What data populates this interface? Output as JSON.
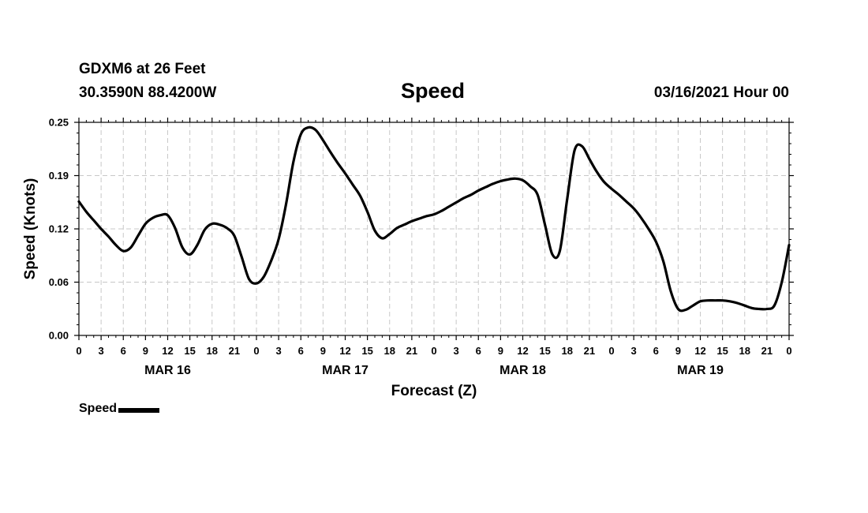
{
  "header": {
    "station": "GDXM6 at 26 Feet",
    "coords": "30.3590N 88.4200W",
    "title": "Speed",
    "datetime": "03/16/2021 Hour 00"
  },
  "legend": {
    "label": "Speed"
  },
  "colors": {
    "line": "#000000",
    "grid": "#c8c8c8",
    "axis": "#000000"
  },
  "chart_data": {
    "type": "line",
    "title": "Speed",
    "xlabel": "Forecast (Z)",
    "ylabel": "Speed (Knots)",
    "xlim": [
      0,
      96
    ],
    "ylim": [
      0,
      0.25
    ],
    "grid": true,
    "y_ticks": [
      {
        "value": 0,
        "label": "0.00"
      },
      {
        "value": 0.0625,
        "label": "0.06"
      },
      {
        "value": 0.125,
        "label": "0.12"
      },
      {
        "value": 0.1875,
        "label": "0.19"
      },
      {
        "value": 0.25,
        "label": "0.25"
      }
    ],
    "x_ticks": [
      "0",
      "3",
      "6",
      "9",
      "12",
      "15",
      "18",
      "21",
      "0",
      "3",
      "6",
      "9",
      "12",
      "15",
      "18",
      "21",
      "0",
      "3",
      "6",
      "9",
      "12",
      "15",
      "18",
      "21",
      "0",
      "3",
      "6",
      "9",
      "12",
      "15",
      "18",
      "21",
      "0"
    ],
    "day_labels": [
      {
        "hour": 12,
        "label": "MAR 16"
      },
      {
        "hour": 36,
        "label": "MAR 17"
      },
      {
        "hour": 60,
        "label": "MAR 18"
      },
      {
        "hour": 84,
        "label": "MAR 19"
      }
    ],
    "series": [
      {
        "name": "Speed",
        "x": [
          0,
          1,
          2,
          3,
          4,
          5,
          6,
          7,
          8,
          9,
          10,
          11,
          12,
          13,
          14,
          15,
          16,
          17,
          18,
          19,
          20,
          21,
          22,
          23,
          24,
          25,
          26,
          27,
          28,
          29,
          30,
          31,
          32,
          33,
          34,
          35,
          36,
          37,
          38,
          39,
          40,
          41,
          42,
          43,
          44,
          45,
          46,
          47,
          48,
          49,
          50,
          51,
          52,
          53,
          54,
          55,
          56,
          57,
          58,
          59,
          60,
          61,
          62,
          63,
          64,
          65,
          66,
          67,
          68,
          69,
          70,
          71,
          72,
          73,
          74,
          75,
          76,
          77,
          78,
          79,
          80,
          81,
          82,
          83,
          84,
          85,
          86,
          87,
          88,
          89,
          90,
          91,
          92,
          93,
          94,
          95,
          96
        ],
        "values": [
          0.157,
          0.145,
          0.135,
          0.125,
          0.116,
          0.106,
          0.099,
          0.103,
          0.117,
          0.131,
          0.138,
          0.141,
          0.141,
          0.126,
          0.103,
          0.095,
          0.106,
          0.124,
          0.131,
          0.13,
          0.126,
          0.117,
          0.092,
          0.066,
          0.061,
          0.069,
          0.088,
          0.113,
          0.154,
          0.204,
          0.236,
          0.244,
          0.241,
          0.229,
          0.215,
          0.202,
          0.19,
          0.177,
          0.164,
          0.145,
          0.123,
          0.114,
          0.119,
          0.126,
          0.13,
          0.134,
          0.137,
          0.14,
          0.142,
          0.146,
          0.151,
          0.156,
          0.161,
          0.165,
          0.17,
          0.174,
          0.178,
          0.181,
          0.183,
          0.184,
          0.182,
          0.175,
          0.165,
          0.13,
          0.095,
          0.099,
          0.16,
          0.217,
          0.222,
          0.207,
          0.192,
          0.18,
          0.172,
          0.165,
          0.157,
          0.149,
          0.138,
          0.125,
          0.11,
          0.087,
          0.052,
          0.031,
          0.03,
          0.035,
          0.04,
          0.041,
          0.041,
          0.041,
          0.04,
          0.038,
          0.035,
          0.032,
          0.031,
          0.031,
          0.035,
          0.062,
          0.106
        ]
      }
    ]
  }
}
